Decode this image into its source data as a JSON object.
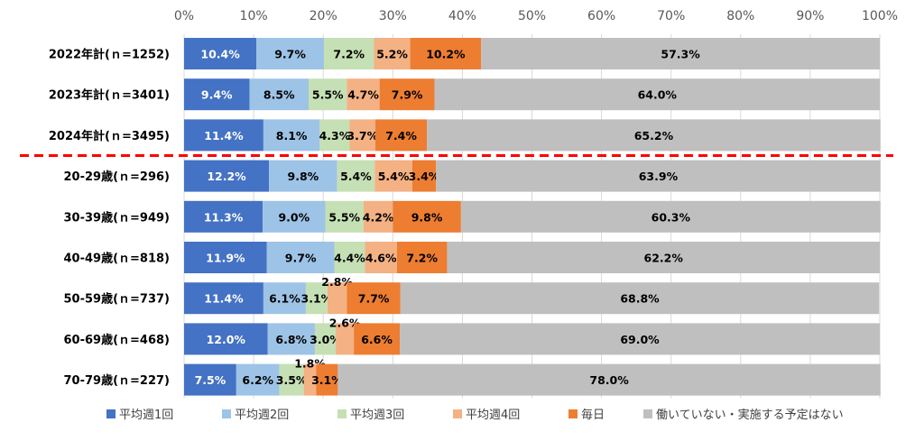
{
  "chart_data": {
    "type": "bar",
    "orientation": "horizontal",
    "stacked": true,
    "percent_axis": true,
    "xlim": [
      0,
      100
    ],
    "x_ticks": [
      "0%",
      "10%",
      "20%",
      "30%",
      "40%",
      "50%",
      "60%",
      "70%",
      "80%",
      "90%",
      "100%"
    ],
    "categories": [
      "2022年計(ｎ=1252)",
      "2023年計(ｎ=3401)",
      "2024年計(ｎ=3495)",
      "20-29歳(ｎ=296)",
      "30-39歳(ｎ=949)",
      "40-49歳(ｎ=818)",
      "50-59歳(ｎ=737)",
      "60-69歳(ｎ=468)",
      "70-79歳(ｎ=227)"
    ],
    "series": [
      {
        "name": "平均週1回",
        "color": "#4472C4",
        "label_color": "#ffffff",
        "values": [
          10.4,
          9.4,
          11.4,
          12.2,
          11.3,
          11.9,
          11.4,
          12.0,
          7.5
        ]
      },
      {
        "name": "平均週2回",
        "color": "#9DC3E6",
        "label_color": "#000000",
        "values": [
          9.7,
          8.5,
          8.1,
          9.8,
          9.0,
          9.7,
          6.1,
          6.8,
          6.2
        ]
      },
      {
        "name": "平均週3回",
        "color": "#C5E0B4",
        "label_color": "#000000",
        "values": [
          7.2,
          5.5,
          4.3,
          5.4,
          5.5,
          4.4,
          3.1,
          3.0,
          3.5
        ]
      },
      {
        "name": "平均週4回",
        "color": "#F4B183",
        "label_color": "#000000",
        "values": [
          5.2,
          4.7,
          3.7,
          5.4,
          4.2,
          4.6,
          2.8,
          2.6,
          1.8
        ]
      },
      {
        "name": "毎日",
        "color": "#ED7D31",
        "label_color": "#000000",
        "values": [
          10.2,
          7.9,
          7.4,
          3.4,
          9.8,
          7.2,
          7.7,
          6.6,
          3.1
        ]
      },
      {
        "name": "働いていない・実施する予定はない",
        "color": "#BFBFBF",
        "label_color": "#000000",
        "values": [
          57.3,
          64.0,
          65.2,
          63.9,
          60.3,
          62.2,
          68.8,
          69.0,
          78.0
        ]
      }
    ],
    "value_labels": [
      [
        "10.4%",
        "9.7%",
        "7.2%",
        "5.2%",
        "10.2%",
        "57.3%"
      ],
      [
        "9.4%",
        "8.5%",
        "5.5%",
        "4.7%",
        "7.9%",
        "64.0%"
      ],
      [
        "11.4%",
        "8.1%",
        "4.3%",
        "3.7%",
        "7.4%",
        "65.2%"
      ],
      [
        "12.2%",
        "9.8%",
        "5.4%",
        "5.4%",
        "3.4%",
        "63.9%"
      ],
      [
        "11.3%",
        "9.0%",
        "5.5%",
        "4.2%",
        "9.8%",
        "60.3%"
      ],
      [
        "11.9%",
        "9.7%",
        "4.4%",
        "4.6%",
        "7.2%",
        "62.2%"
      ],
      [
        "11.4%",
        "6.1%",
        "3.1%",
        "2.8%",
        "7.7%",
        "68.8%"
      ],
      [
        "12.0%",
        "6.8%",
        "3.0%",
        "2.6%",
        "6.6%",
        "69.0%"
      ],
      [
        "7.5%",
        "6.2%",
        "3.5%",
        "1.8%",
        "3.1%",
        "78.0%"
      ]
    ],
    "divider": {
      "after_category_index": 2,
      "style": "dashed",
      "color": "#FF0000"
    },
    "legend_position": "bottom",
    "grid": true
  }
}
